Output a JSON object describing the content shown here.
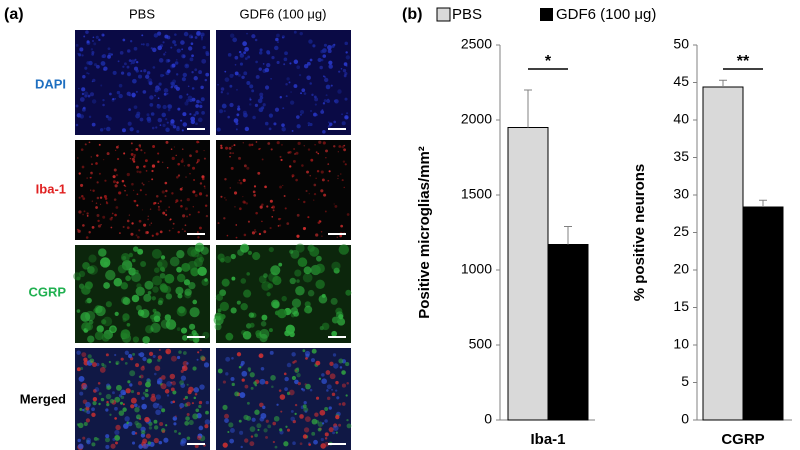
{
  "panel_a": {
    "label": "(a)",
    "columns": [
      "PBS",
      "GDF6 (100 μg)"
    ],
    "rows": [
      "DAPI",
      "Iba-1",
      "CGRP",
      "Merged"
    ]
  },
  "panel_b_label": "(b)",
  "chart_data": [
    {
      "type": "bar",
      "categories": [
        "Iba-1"
      ],
      "ylabel": "Positive microglias/mm²",
      "annotation": "*",
      "ylim": [
        0,
        2500
      ],
      "yticks": [
        0,
        500,
        1000,
        1500,
        2000,
        2500
      ],
      "series": [
        {
          "name": "PBS",
          "color": "#d9d9d9",
          "values": [
            1950
          ],
          "errors": [
            250
          ]
        },
        {
          "name": "GDF6 (100 μg)",
          "color": "#000000",
          "values": [
            1170
          ],
          "errors": [
            120
          ]
        }
      ]
    },
    {
      "type": "bar",
      "categories": [
        "CGRP"
      ],
      "ylabel": "% positive neurons",
      "annotation": "**",
      "ylim": [
        0,
        50
      ],
      "yticks": [
        0,
        5,
        10,
        15,
        20,
        25,
        30,
        35,
        40,
        45,
        50
      ],
      "series": [
        {
          "color": "#d9d9d9",
          "values": [
            44.4
          ],
          "errors": [
            0.9
          ]
        },
        {
          "color": "#000000",
          "values": [
            28.4
          ],
          "errors": [
            0.9
          ]
        }
      ]
    }
  ]
}
